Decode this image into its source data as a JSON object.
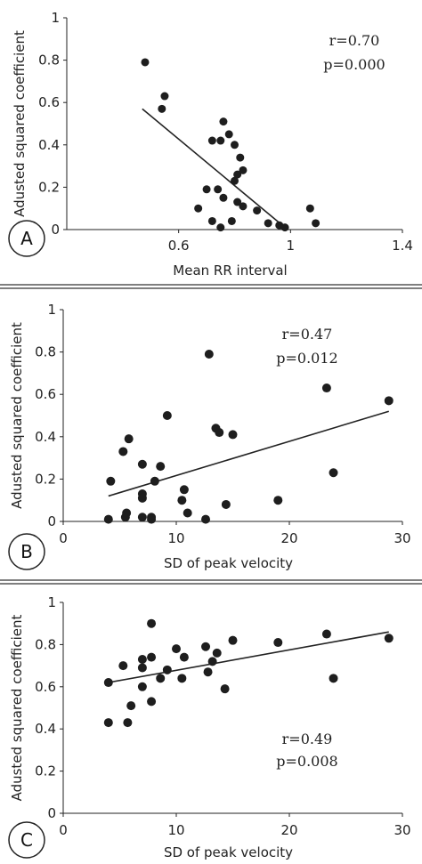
{
  "chart_data": [
    {
      "type": "scatter",
      "panel_label": "A",
      "xlabel": "Mean RR interval",
      "ylabel": "Adusted squared coefficient",
      "xlim": [
        0.2,
        1.4
      ],
      "ylim": [
        0,
        1
      ],
      "xticks": [
        "0.6",
        "1",
        "1.4"
      ],
      "yticks": [
        "0",
        "0.2",
        "0.4",
        "0.6",
        "0.8",
        "1"
      ],
      "annotations": [
        "r=0.70",
        "p=0.000"
      ],
      "points": [
        [
          0.48,
          0.79
        ],
        [
          0.55,
          0.63
        ],
        [
          0.54,
          0.57
        ],
        [
          0.76,
          0.51
        ],
        [
          0.72,
          0.42
        ],
        [
          0.75,
          0.42
        ],
        [
          0.78,
          0.45
        ],
        [
          0.8,
          0.4
        ],
        [
          0.82,
          0.34
        ],
        [
          0.83,
          0.28
        ],
        [
          0.81,
          0.26
        ],
        [
          0.8,
          0.23
        ],
        [
          0.74,
          0.19
        ],
        [
          0.7,
          0.19
        ],
        [
          0.76,
          0.15
        ],
        [
          0.81,
          0.13
        ],
        [
          0.83,
          0.11
        ],
        [
          0.67,
          0.1
        ],
        [
          0.88,
          0.09
        ],
        [
          0.92,
          0.03
        ],
        [
          0.79,
          0.04
        ],
        [
          0.72,
          0.04
        ],
        [
          0.75,
          0.01
        ],
        [
          0.96,
          0.02
        ],
        [
          0.98,
          0.01
        ],
        [
          1.07,
          0.1
        ],
        [
          1.09,
          0.03
        ]
      ],
      "fit_line": [
        [
          0.47,
          0.57
        ],
        [
          0.98,
          0.01
        ]
      ]
    },
    {
      "type": "scatter",
      "panel_label": "B",
      "xlabel": "SD of peak velocity",
      "ylabel": "Adusted squared coefficient",
      "xlim": [
        0,
        30
      ],
      "ylim": [
        0,
        1
      ],
      "xticks": [
        "0",
        "10",
        "20",
        "30"
      ],
      "yticks": [
        "0",
        "0.2",
        "0.4",
        "0.6",
        "0.8",
        "1"
      ],
      "annotations": [
        "r=0.47",
        "p=0.012"
      ],
      "points": [
        [
          4.2,
          0.19
        ],
        [
          4.0,
          0.01
        ],
        [
          5.3,
          0.33
        ],
        [
          5.8,
          0.39
        ],
        [
          5.6,
          0.04
        ],
        [
          5.5,
          0.02
        ],
        [
          7.0,
          0.27
        ],
        [
          7.0,
          0.13
        ],
        [
          7.0,
          0.11
        ],
        [
          7.0,
          0.02
        ],
        [
          7.8,
          0.02
        ],
        [
          7.8,
          0.01
        ],
        [
          8.1,
          0.19
        ],
        [
          8.6,
          0.26
        ],
        [
          9.2,
          0.5
        ],
        [
          10.5,
          0.1
        ],
        [
          10.7,
          0.15
        ],
        [
          11.0,
          0.04
        ],
        [
          12.6,
          0.01
        ],
        [
          12.9,
          0.79
        ],
        [
          13.5,
          0.44
        ],
        [
          13.8,
          0.42
        ],
        [
          14.4,
          0.08
        ],
        [
          15.0,
          0.41
        ],
        [
          19.0,
          0.1
        ],
        [
          23.3,
          0.63
        ],
        [
          23.9,
          0.23
        ],
        [
          28.8,
          0.57
        ]
      ],
      "fit_line": [
        [
          4.0,
          0.12
        ],
        [
          28.8,
          0.52
        ]
      ]
    },
    {
      "type": "scatter",
      "panel_label": "C",
      "xlabel": "SD of peak velocity",
      "ylabel": "Adusted squared coefficient",
      "xlim": [
        0,
        30
      ],
      "ylim": [
        0,
        1
      ],
      "xticks": [
        "0",
        "10",
        "20",
        "30"
      ],
      "yticks": [
        "0",
        "0.2",
        "0.4",
        "0.6",
        "0.8",
        "1"
      ],
      "annotations": [
        "r=0.49",
        "p=0.008"
      ],
      "points": [
        [
          4.0,
          0.62
        ],
        [
          4.0,
          0.43
        ],
        [
          5.3,
          0.7
        ],
        [
          5.7,
          0.43
        ],
        [
          6.0,
          0.51
        ],
        [
          7.0,
          0.73
        ],
        [
          7.0,
          0.69
        ],
        [
          7.0,
          0.6
        ],
        [
          7.8,
          0.9
        ],
        [
          7.8,
          0.74
        ],
        [
          7.8,
          0.53
        ],
        [
          8.6,
          0.64
        ],
        [
          9.2,
          0.68
        ],
        [
          10.0,
          0.78
        ],
        [
          10.5,
          0.64
        ],
        [
          10.7,
          0.74
        ],
        [
          12.6,
          0.79
        ],
        [
          12.8,
          0.67
        ],
        [
          13.2,
          0.72
        ],
        [
          13.6,
          0.76
        ],
        [
          14.3,
          0.59
        ],
        [
          15.0,
          0.82
        ],
        [
          19.0,
          0.81
        ],
        [
          23.3,
          0.85
        ],
        [
          23.9,
          0.64
        ],
        [
          28.8,
          0.83
        ]
      ],
      "fit_line": [
        [
          4.0,
          0.62
        ],
        [
          28.8,
          0.86
        ]
      ]
    }
  ]
}
